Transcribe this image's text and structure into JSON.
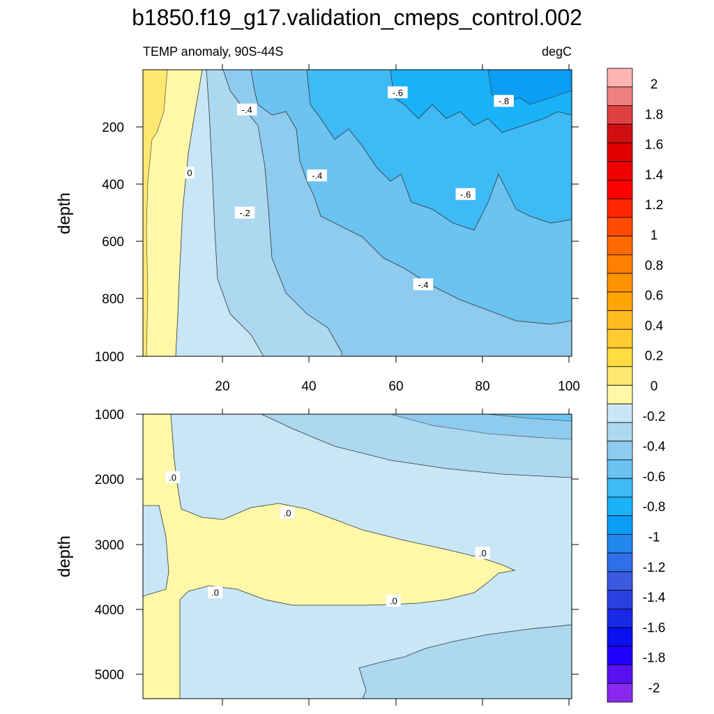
{
  "title": "b1850.f19_g17.validation_cmeps_control.002",
  "chart_data": [
    {
      "type": "contour",
      "subtitle_left": "TEMP anomaly, 90S-44S",
      "subtitle_right": "degC",
      "ylabel": "depth",
      "xlim": [
        0,
        101
      ],
      "ylim": [
        0,
        1000
      ],
      "y_reversed": true,
      "xticks": [
        "20",
        "40",
        "60",
        "80",
        "100"
      ],
      "yticks": [
        "200",
        "400",
        "600",
        "800",
        "1000"
      ],
      "contour_labels": [
        {
          "text": "0",
          "x": 11,
          "y": 360
        },
        {
          "text": "-.2",
          "x": 24,
          "y": 500
        },
        {
          "text": "-.4",
          "x": 24.5,
          "y": 140
        },
        {
          "text": "-.4",
          "x": 41,
          "y": 370
        },
        {
          "text": "-.4",
          "x": 66,
          "y": 750
        },
        {
          "text": "-.6",
          "x": 60,
          "y": 80
        },
        {
          "text": "-.6",
          "x": 76,
          "y": 435
        },
        {
          "text": "-.8",
          "x": 85,
          "y": 110
        }
      ]
    },
    {
      "type": "contour",
      "ylabel": "depth",
      "xlim": [
        0,
        101
      ],
      "ylim": [
        1000,
        5400
      ],
      "y_reversed": true,
      "yticks": [
        "1000",
        "2000",
        "3000",
        "4000",
        "5000"
      ],
      "contour_labels": [
        {
          "text": ".0",
          "x": 7,
          "y": 1980
        },
        {
          "text": ".0",
          "x": 34,
          "y": 2530
        },
        {
          "text": ".0",
          "x": 80,
          "y": 3150
        },
        {
          "text": ".0",
          "x": 17,
          "y": 3760
        },
        {
          "text": ".0",
          "x": 59,
          "y": 3890
        }
      ]
    }
  ],
  "colorbar": {
    "labels": [
      "2",
      "1.8",
      "1.6",
      "1.4",
      "1.2",
      "1",
      "0.8",
      "0.6",
      "0.4",
      "0.2",
      "0",
      "-0.2",
      "-0.4",
      "-0.6",
      "-0.8",
      "-1",
      "-1.2",
      "-1.4",
      "-1.6",
      "-1.8",
      "-2"
    ],
    "colors": [
      "#ffb3b3",
      "#f08080",
      "#e04040",
      "#d01010",
      "#e00000",
      "#f00000",
      "#ff0000",
      "#ff2600",
      "#ff4c00",
      "#ff6a00",
      "#ff7f00",
      "#ff9200",
      "#ffa500",
      "#ffba20",
      "#ffcb30",
      "#ffdc40",
      "#ffe870",
      "#fff8a8",
      "#c8e6f5",
      "#acd8f0",
      "#8ecbee",
      "#6ac3f0",
      "#3ebaf5",
      "#1ab2f8",
      "#0a9ef5",
      "#2288f0",
      "#2f6fe8",
      "#3a5ae0",
      "#2a40e0",
      "#1a28e8",
      "#0a10f0",
      "#2000ff",
      "#5a10f0",
      "#8a28f0"
    ]
  },
  "fill_colors": {
    "warm1": "#fff8a8",
    "warm2": "#ffe870",
    "c0": "#c8e6f5",
    "c1": "#acd8f0",
    "c2": "#8ecbee",
    "c3": "#6ac3f0",
    "c4": "#3ebaf5",
    "c5": "#1ab2f8"
  }
}
